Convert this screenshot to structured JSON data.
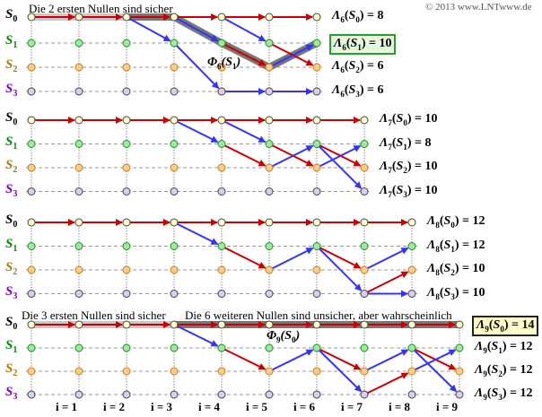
{
  "copyright": "© 2013 www.LNTwww.de",
  "colors": {
    "red": "#cc0000",
    "blue": "#3333ff",
    "s0": "#ffffcc",
    "s1": "#99ee99",
    "s2": "#ffcc88",
    "s3": "#ddccee",
    "s0_label": "#000000",
    "s1_label": "#008800",
    "s2_label": "#aa7700",
    "s3_label": "#7700cc"
  },
  "state_names": [
    "S0",
    "S1",
    "S2",
    "S3"
  ],
  "state_label": {
    "letter": "S",
    "subs": [
      "0",
      "1",
      "2",
      "3"
    ]
  },
  "metric_symbol": "Λ",
  "phi_symbol": "Φ",
  "notes": {
    "p1": "Die 2 ersten Nullen sind sicher",
    "p4a": "Die 3 ersten Nullen sind sicher",
    "p4b": "Die 6 weiteren Nullen sind unsicher, aber wahrscheinlich"
  },
  "panels": [
    {
      "time": "6",
      "columns": 7,
      "metrics": [
        {
          "state": "0",
          "value": "8"
        },
        {
          "state": "1",
          "value": "10",
          "highlight": "green"
        },
        {
          "state": "2",
          "value": "6"
        },
        {
          "state": "3",
          "value": "6"
        }
      ],
      "phi": {
        "time": "6",
        "state": "1"
      },
      "edges": [
        [
          0,
          0,
          0,
          "r"
        ],
        [
          1,
          0,
          0,
          "r"
        ],
        [
          2,
          0,
          0,
          "r"
        ],
        [
          3,
          0,
          0,
          "r"
        ],
        [
          4,
          0,
          0,
          "r"
        ],
        [
          5,
          0,
          0,
          "r"
        ],
        [
          2,
          0,
          1,
          "b"
        ],
        [
          3,
          0,
          1,
          "b"
        ],
        [
          3,
          1,
          3,
          "b"
        ],
        [
          4,
          0,
          1,
          "b"
        ],
        [
          4,
          1,
          2,
          "r"
        ],
        [
          4,
          3,
          3,
          "b"
        ],
        [
          5,
          1,
          2,
          "r"
        ],
        [
          5,
          2,
          1,
          "b"
        ],
        [
          5,
          3,
          3,
          "b"
        ]
      ],
      "survivor_light": [
        [
          0,
          0,
          0
        ],
        [
          1,
          0,
          0
        ]
      ],
      "survivor_dark": [
        [
          2,
          0,
          0
        ],
        [
          3,
          0,
          1
        ],
        [
          4,
          1,
          2
        ],
        [
          5,
          2,
          1
        ]
      ]
    },
    {
      "time": "7",
      "columns": 8,
      "metrics": [
        {
          "state": "0",
          "value": "10"
        },
        {
          "state": "1",
          "value": "8"
        },
        {
          "state": "2",
          "value": "10"
        },
        {
          "state": "3",
          "value": "10"
        }
      ],
      "edges": [
        [
          0,
          0,
          0,
          "r"
        ],
        [
          1,
          0,
          0,
          "r"
        ],
        [
          2,
          0,
          0,
          "r"
        ],
        [
          3,
          0,
          0,
          "r"
        ],
        [
          4,
          0,
          0,
          "r"
        ],
        [
          5,
          0,
          0,
          "r"
        ],
        [
          6,
          0,
          0,
          "r"
        ],
        [
          3,
          0,
          1,
          "b"
        ],
        [
          4,
          0,
          1,
          "b"
        ],
        [
          4,
          1,
          2,
          "r"
        ],
        [
          5,
          1,
          2,
          "r"
        ],
        [
          5,
          2,
          1,
          "b"
        ],
        [
          6,
          1,
          2,
          "r"
        ],
        [
          6,
          1,
          3,
          "b"
        ],
        [
          6,
          2,
          1,
          "b"
        ]
      ],
      "survivor_light": [],
      "survivor_dark": []
    },
    {
      "time": "8",
      "columns": 9,
      "metrics": [
        {
          "state": "0",
          "value": "12"
        },
        {
          "state": "1",
          "value": "12"
        },
        {
          "state": "2",
          "value": "10"
        },
        {
          "state": "3",
          "value": "10"
        }
      ],
      "edges": [
        [
          0,
          0,
          0,
          "r"
        ],
        [
          1,
          0,
          0,
          "r"
        ],
        [
          2,
          0,
          0,
          "r"
        ],
        [
          3,
          0,
          0,
          "r"
        ],
        [
          4,
          0,
          0,
          "r"
        ],
        [
          5,
          0,
          0,
          "r"
        ],
        [
          6,
          0,
          0,
          "r"
        ],
        [
          7,
          0,
          0,
          "r"
        ],
        [
          3,
          0,
          1,
          "b"
        ],
        [
          4,
          1,
          2,
          "r"
        ],
        [
          5,
          2,
          1,
          "b"
        ],
        [
          6,
          1,
          2,
          "r"
        ],
        [
          6,
          1,
          3,
          "b"
        ],
        [
          7,
          2,
          1,
          "b"
        ],
        [
          7,
          3,
          2,
          "r"
        ],
        [
          7,
          3,
          3,
          "b"
        ]
      ],
      "survivor_light": [],
      "survivor_dark": []
    },
    {
      "time": "9",
      "columns": 10,
      "metrics": [
        {
          "state": "0",
          "value": "14",
          "highlight": "yellow"
        },
        {
          "state": "1",
          "value": "12"
        },
        {
          "state": "2",
          "value": "12"
        },
        {
          "state": "3",
          "value": "12"
        }
      ],
      "phi": {
        "time": "9",
        "state": "0"
      },
      "edges": [
        [
          0,
          0,
          0,
          "r"
        ],
        [
          1,
          0,
          0,
          "r"
        ],
        [
          2,
          0,
          0,
          "r"
        ],
        [
          3,
          0,
          0,
          "r"
        ],
        [
          4,
          0,
          0,
          "r"
        ],
        [
          5,
          0,
          0,
          "r"
        ],
        [
          6,
          0,
          0,
          "r"
        ],
        [
          7,
          0,
          0,
          "r"
        ],
        [
          8,
          0,
          0,
          "r"
        ],
        [
          3,
          0,
          1,
          "b"
        ],
        [
          4,
          1,
          2,
          "r"
        ],
        [
          5,
          2,
          1,
          "b"
        ],
        [
          6,
          1,
          2,
          "r"
        ],
        [
          6,
          1,
          3,
          "b"
        ],
        [
          7,
          2,
          1,
          "b"
        ],
        [
          7,
          3,
          2,
          "r"
        ],
        [
          8,
          1,
          2,
          "r"
        ],
        [
          8,
          1,
          3,
          "b"
        ],
        [
          8,
          2,
          1,
          "b"
        ]
      ],
      "survivor_light": [
        [
          0,
          0,
          0
        ],
        [
          1,
          0,
          0
        ],
        [
          2,
          0,
          0
        ]
      ],
      "survivor_dark": [
        [
          3,
          0,
          0
        ],
        [
          4,
          0,
          0
        ],
        [
          5,
          0,
          0
        ],
        [
          6,
          0,
          0
        ],
        [
          7,
          0,
          0
        ],
        [
          8,
          0,
          0
        ]
      ]
    }
  ],
  "time_labels": [
    "i = 1",
    "i = 2",
    "i = 3",
    "i = 4",
    "i = 5",
    "i = 6",
    "i = 7",
    "i = 8",
    "i = 9"
  ]
}
